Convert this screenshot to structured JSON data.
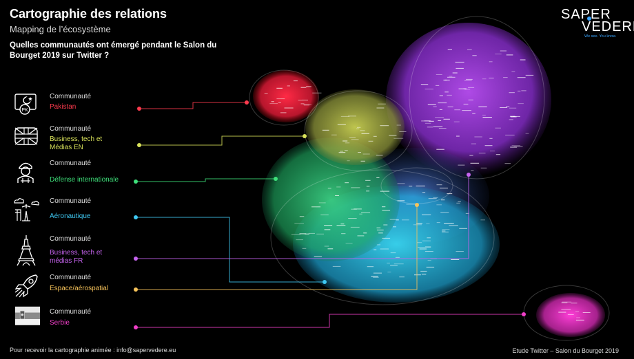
{
  "title": "Cartographie des relations",
  "subtitle": "Mapping de l’écosystème",
  "question": "Quelles communautés ont émergé pendant le Salon du Bourget 2019 sur Twitter ?",
  "brand": {
    "line1": "SAPER",
    "line2": "VEDERE",
    "tagline": "We see. You know."
  },
  "community_label": "Communauté",
  "communities": [
    {
      "id": "pakistan",
      "name": "Pakistan",
      "color": "#ff3b4e",
      "icon": "pakistan-flag-icon"
    },
    {
      "id": "business-en",
      "name": "Business, tech et Médias EN",
      "color": "#d9e25a",
      "icon": "uk-flag-icon"
    },
    {
      "id": "defense",
      "name": "Défense internationale",
      "color": "#3ee07a",
      "icon": "soldier-icon"
    },
    {
      "id": "aero",
      "name": "Aéronautique",
      "color": "#3fc8f2",
      "icon": "airport-icon"
    },
    {
      "id": "business-fr",
      "name": "Business, tech et médias FR",
      "color": "#c764f0",
      "icon": "eiffel-tower-icon"
    },
    {
      "id": "space",
      "name": "Espace/aérospatial",
      "color": "#f7c35a",
      "icon": "rocket-icon"
    },
    {
      "id": "serbie",
      "name": "Serbie",
      "color": "#f03fc8",
      "icon": "serbia-flag-icon"
    }
  ],
  "footer_left": "Pour recevoir la cartographie animée : info@sapervedere.eu",
  "footer_right": "Etude Twitter – Salon du Bourget 2019"
}
